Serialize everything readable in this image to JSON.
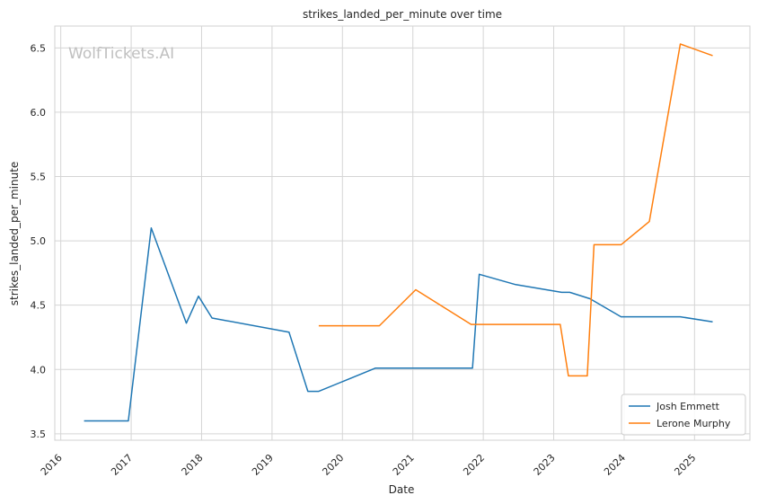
{
  "chart_data": {
    "type": "line",
    "title": "strikes_landed_per_minute over time",
    "xlabel": "Date",
    "ylabel": "strikes_landed_per_minute",
    "watermark": "WolfTickets.AI",
    "x_ticks": [
      "2016",
      "2017",
      "2018",
      "2019",
      "2020",
      "2021",
      "2022",
      "2023",
      "2024",
      "2025"
    ],
    "y_ticks": [
      "3.5",
      "4.0",
      "4.5",
      "5.0",
      "5.5",
      "6.0",
      "6.5"
    ],
    "xlim": [
      "2015-12-01",
      "2025-10-15"
    ],
    "ylim": [
      3.45,
      6.67
    ],
    "grid": true,
    "legend_position": "bottom-right",
    "series": [
      {
        "name": "Josh Emmett",
        "color": "#1f77b4",
        "points": [
          [
            "2016-05-01",
            3.6
          ],
          [
            "2016-12-17",
            3.6
          ],
          [
            "2017-04-15",
            5.1
          ],
          [
            "2017-10-14",
            4.36
          ],
          [
            "2017-12-16",
            4.57
          ],
          [
            "2018-02-24",
            4.4
          ],
          [
            "2019-03-30",
            4.29
          ],
          [
            "2019-07-06",
            3.83
          ],
          [
            "2019-08-31",
            3.83
          ],
          [
            "2020-06-20",
            4.01
          ],
          [
            "2021-11-06",
            4.01
          ],
          [
            "2021-12-11",
            4.74
          ],
          [
            "2022-06-18",
            4.66
          ],
          [
            "2023-02-11",
            4.6
          ],
          [
            "2023-03-25",
            4.6
          ],
          [
            "2023-07-08",
            4.55
          ],
          [
            "2023-12-16",
            4.41
          ],
          [
            "2024-10-19",
            4.41
          ],
          [
            "2025-04-05",
            4.37
          ]
        ]
      },
      {
        "name": "Lerone Murphy",
        "color": "#ff7f0e",
        "points": [
          [
            "2019-08-31",
            4.34
          ],
          [
            "2020-07-11",
            4.34
          ],
          [
            "2021-01-16",
            4.62
          ],
          [
            "2021-10-30",
            4.35
          ],
          [
            "2023-02-04",
            4.35
          ],
          [
            "2023-03-18",
            3.95
          ],
          [
            "2023-06-24",
            3.95
          ],
          [
            "2023-07-29",
            4.97
          ],
          [
            "2023-12-16",
            4.97
          ],
          [
            "2024-05-11",
            5.15
          ],
          [
            "2024-10-19",
            6.53
          ],
          [
            "2025-04-05",
            6.44
          ]
        ]
      }
    ]
  }
}
